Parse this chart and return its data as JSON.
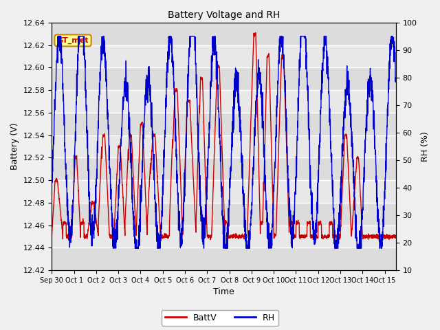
{
  "title": "Battery Voltage and RH",
  "xlabel": "Time",
  "ylabel_left": "Battery (V)",
  "ylabel_right": "RH (%)",
  "xlim_days": [
    0,
    15.5
  ],
  "ylim_left": [
    12.42,
    12.64
  ],
  "ylim_right": [
    10,
    100
  ],
  "yticks_left": [
    12.42,
    12.44,
    12.46,
    12.48,
    12.5,
    12.52,
    12.54,
    12.56,
    12.58,
    12.6,
    12.62,
    12.64
  ],
  "yticks_right": [
    10,
    20,
    30,
    40,
    50,
    60,
    70,
    80,
    90,
    100
  ],
  "xtick_labels": [
    "Sep 30",
    "Oct 1",
    "Oct 2",
    "Oct 3",
    "Oct 4",
    "Oct 5",
    "Oct 6",
    "Oct 7",
    "Oct 8",
    "Oct 9",
    "Oct 10",
    "Oct 11",
    "Oct 12",
    "Oct 13",
    "Oct 14",
    "Oct 15"
  ],
  "xtick_positions": [
    0,
    1,
    2,
    3,
    4,
    5,
    6,
    7,
    8,
    9,
    10,
    11,
    12,
    13,
    14,
    15
  ],
  "batt_color": "#cc0000",
  "rh_color": "#0000cc",
  "plot_bg_color": "#e8e8e8",
  "band_color": "#d0d0d0",
  "legend_label_batt": "BattV",
  "legend_label_rh": "RH",
  "annotation_text": "GT_met",
  "annotation_bg": "#ffff99",
  "annotation_border": "#cc8800",
  "annotation_text_color": "#cc0000",
  "figsize": [
    6.4,
    4.8
  ],
  "dpi": 100
}
